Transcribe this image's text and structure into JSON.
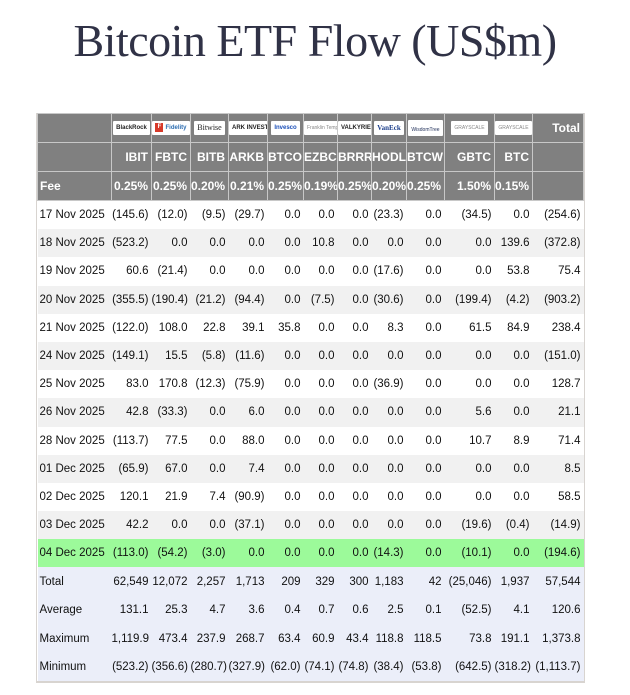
{
  "title": "Bitcoin ETF Flow (US$m)",
  "header": {
    "logos": [
      "BlackRock",
      "Fidelity",
      "Bitwise",
      "ARK INVEST",
      "Invesco",
      "Franklin Templeton",
      "VALKYRIE",
      "VanEck",
      "WisdomTree",
      "GRAYSCALE",
      "GRAYSCALE"
    ],
    "total_label": "Total",
    "tickers": [
      "IBIT",
      "FBTC",
      "BITB",
      "ARKB",
      "BTCO",
      "EZBC",
      "BRRR",
      "HODL",
      "BTCW",
      "GBTC",
      "BTC"
    ],
    "fee_label": "Fee",
    "fees": [
      "0.25%",
      "0.25%",
      "0.20%",
      "0.21%",
      "0.25%",
      "0.19%",
      "0.25%",
      "0.20%",
      "0.25%",
      "1.50%",
      "0.15%"
    ]
  },
  "rows": [
    {
      "date": "17 Nov 2025",
      "values": [
        "(145.6)",
        "(12.0)",
        "(9.5)",
        "(29.7)",
        "0.0",
        "0.0",
        "0.0",
        "(23.3)",
        "0.0",
        "(34.5)",
        "0.0",
        "(254.6)"
      ]
    },
    {
      "date": "18 Nov 2025",
      "values": [
        "(523.2)",
        "0.0",
        "0.0",
        "0.0",
        "0.0",
        "10.8",
        "0.0",
        "0.0",
        "0.0",
        "0.0",
        "139.6",
        "(372.8)"
      ]
    },
    {
      "date": "19 Nov 2025",
      "values": [
        "60.6",
        "(21.4)",
        "0.0",
        "0.0",
        "0.0",
        "0.0",
        "0.0",
        "(17.6)",
        "0.0",
        "0.0",
        "53.8",
        "75.4"
      ]
    },
    {
      "date": "20 Nov 2025",
      "values": [
        "(355.5)",
        "(190.4)",
        "(21.2)",
        "(94.4)",
        "0.0",
        "(7.5)",
        "0.0",
        "(30.6)",
        "0.0",
        "(199.4)",
        "(4.2)",
        "(903.2)"
      ]
    },
    {
      "date": "21 Nov 2025",
      "values": [
        "(122.0)",
        "108.0",
        "22.8",
        "39.1",
        "35.8",
        "0.0",
        "0.0",
        "8.3",
        "0.0",
        "61.5",
        "84.9",
        "238.4"
      ]
    },
    {
      "date": "24 Nov 2025",
      "values": [
        "(149.1)",
        "15.5",
        "(5.8)",
        "(11.6)",
        "0.0",
        "0.0",
        "0.0",
        "0.0",
        "0.0",
        "0.0",
        "0.0",
        "(151.0)"
      ]
    },
    {
      "date": "25 Nov 2025",
      "values": [
        "83.0",
        "170.8",
        "(12.3)",
        "(75.9)",
        "0.0",
        "0.0",
        "0.0",
        "(36.9)",
        "0.0",
        "0.0",
        "0.0",
        "128.7"
      ]
    },
    {
      "date": "26 Nov 2025",
      "values": [
        "42.8",
        "(33.3)",
        "0.0",
        "6.0",
        "0.0",
        "0.0",
        "0.0",
        "0.0",
        "0.0",
        "5.6",
        "0.0",
        "21.1"
      ]
    },
    {
      "date": "28 Nov 2025",
      "values": [
        "(113.7)",
        "77.5",
        "0.0",
        "88.0",
        "0.0",
        "0.0",
        "0.0",
        "0.0",
        "0.0",
        "10.7",
        "8.9",
        "71.4"
      ]
    },
    {
      "date": "01 Dec 2025",
      "values": [
        "(65.9)",
        "67.0",
        "0.0",
        "7.4",
        "0.0",
        "0.0",
        "0.0",
        "0.0",
        "0.0",
        "0.0",
        "0.0",
        "8.5"
      ]
    },
    {
      "date": "02 Dec 2025",
      "values": [
        "120.1",
        "21.9",
        "7.4",
        "(90.9)",
        "0.0",
        "0.0",
        "0.0",
        "0.0",
        "0.0",
        "0.0",
        "0.0",
        "58.5"
      ]
    },
    {
      "date": "03 Dec 2025",
      "values": [
        "42.2",
        "0.0",
        "0.0",
        "(37.1)",
        "0.0",
        "0.0",
        "0.0",
        "0.0",
        "0.0",
        "(19.6)",
        "(0.4)",
        "(14.9)"
      ]
    },
    {
      "date": "04 Dec 2025",
      "values": [
        "(113.0)",
        "(54.2)",
        "(3.0)",
        "0.0",
        "0.0",
        "0.0",
        "0.0",
        "(14.3)",
        "0.0",
        "(10.1)",
        "0.0",
        "(194.6)"
      ],
      "highlight": true
    }
  ],
  "summary": [
    {
      "label": "Total",
      "values": [
        "62,549",
        "12,072",
        "2,257",
        "1,713",
        "209",
        "329",
        "300",
        "1,183",
        "42",
        "(25,046)",
        "1,937",
        "57,544"
      ]
    },
    {
      "label": "Average",
      "values": [
        "131.1",
        "25.3",
        "4.7",
        "3.6",
        "0.4",
        "0.7",
        "0.6",
        "2.5",
        "0.1",
        "(52.5)",
        "4.1",
        "120.6"
      ]
    },
    {
      "label": "Maximum",
      "values": [
        "1,119.9",
        "473.4",
        "237.9",
        "268.7",
        "63.4",
        "60.9",
        "43.4",
        "118.8",
        "118.5",
        "73.8",
        "191.1",
        "1,373.8"
      ]
    },
    {
      "label": "Minimum",
      "values": [
        "(523.2)",
        "(356.6)",
        "(280.7)",
        "(327.9)",
        "(62.0)",
        "(74.1)",
        "(74.8)",
        "(38.4)",
        "(53.8)",
        "(642.5)",
        "(318.2)",
        "(1,113.7)"
      ]
    }
  ],
  "colors": {
    "header_bg": "#808080",
    "negative": "#e8101a",
    "highlight_row": "#9cfa9a",
    "summary_bg": "#ebeef9",
    "title": "#303246"
  }
}
